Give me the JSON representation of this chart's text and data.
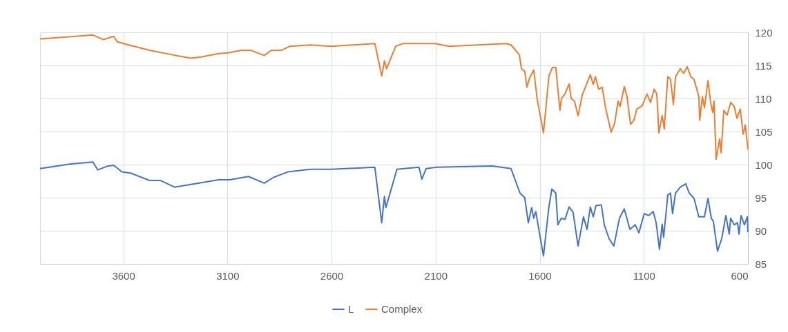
{
  "chart_data": {
    "type": "line",
    "xlim": [
      4000,
      600
    ],
    "xticks": [
      3600,
      3100,
      2600,
      2100,
      1600,
      1100,
      600
    ],
    "ylim": [
      85,
      120
    ],
    "yticks": [
      85,
      90,
      95,
      100,
      105,
      110,
      115,
      120
    ],
    "grid": true,
    "legend": "bottom",
    "series": [
      {
        "name": "L",
        "color": "#4472c4",
        "x": [
          4000,
          3852,
          3746,
          3723,
          3673,
          3646,
          3607,
          3563,
          3474,
          3421,
          3354,
          3255,
          3142,
          3089,
          2999,
          2923,
          2877,
          2810,
          2701,
          2601,
          2392,
          2359,
          2346,
          2339,
          2286,
          2180,
          2166,
          2146,
          2093,
          1828,
          1738,
          1695,
          1672,
          1655,
          1639,
          1629,
          1619,
          1606,
          1582,
          1556,
          1542,
          1523,
          1513,
          1496,
          1479,
          1459,
          1440,
          1416,
          1390,
          1373,
          1357,
          1343,
          1330,
          1304,
          1290,
          1267,
          1244,
          1217,
          1194,
          1167,
          1141,
          1124,
          1098,
          1078,
          1055,
          1041,
          1025,
          1012,
          1005,
          985,
          972,
          962,
          948,
          925,
          899,
          882,
          859,
          836,
          809,
          792,
          776,
          766,
          746,
          726,
          706,
          690,
          683,
          666,
          650,
          643,
          633,
          617,
          603,
          600
        ],
        "values": [
          99.4,
          100.1,
          100.4,
          99.2,
          99.8,
          99.9,
          98.9,
          98.7,
          97.6,
          97.6,
          96.6,
          97.1,
          97.7,
          97.7,
          98.2,
          97.2,
          98.1,
          98.9,
          99.3,
          99.3,
          99.6,
          91.2,
          95.2,
          93.5,
          99.3,
          99.6,
          97.8,
          99.4,
          99.6,
          99.8,
          99.4,
          95.7,
          95.0,
          91.2,
          93.5,
          91.9,
          92.9,
          90.5,
          86.2,
          93.6,
          96.3,
          95.7,
          90.9,
          91.9,
          91.7,
          93.6,
          92.8,
          87.7,
          92.1,
          90.2,
          93.6,
          92.1,
          93.8,
          93.9,
          90.9,
          88.8,
          87.7,
          91.9,
          93.3,
          90.2,
          90.9,
          89.7,
          92.6,
          92.3,
          92.9,
          91.2,
          87.2,
          91.0,
          89.0,
          95.4,
          95.7,
          92.6,
          95.7,
          96.6,
          97.1,
          95.7,
          94.9,
          92.1,
          92.1,
          94.9,
          91.9,
          91.4,
          86.9,
          88.8,
          92.3,
          89.5,
          91.9,
          90.9,
          91.2,
          89.5,
          92.3,
          90.9,
          92.1,
          89.8
        ]
      },
      {
        "name": "Complex",
        "color": "#ed7d31",
        "x": [
          4000,
          3829,
          3746,
          3696,
          3646,
          3630,
          3587,
          3474,
          3364,
          3275,
          3222,
          3142,
          3099,
          3033,
          2989,
          2923,
          2890,
          2840,
          2800,
          2701,
          2601,
          2392,
          2359,
          2346,
          2336,
          2292,
          2259,
          2103,
          2037,
          1761,
          1738,
          1698,
          1688,
          1672,
          1662,
          1649,
          1629,
          1612,
          1582,
          1556,
          1539,
          1523,
          1513,
          1503,
          1496,
          1479,
          1459,
          1449,
          1433,
          1416,
          1396,
          1357,
          1343,
          1333,
          1317,
          1300,
          1284,
          1257,
          1240,
          1224,
          1214,
          1194,
          1181,
          1164,
          1148,
          1134,
          1108,
          1085,
          1068,
          1051,
          1038,
          1028,
          1012,
          1002,
          985,
          972,
          958,
          948,
          925,
          909,
          892,
          875,
          859,
          836,
          832,
          819,
          809,
          792,
          779,
          769,
          763,
          753,
          736,
          729,
          716,
          700,
          683,
          666,
          653,
          637,
          623,
          613,
          600
        ],
        "values": [
          119.0,
          119.4,
          119.6,
          118.9,
          119.4,
          118.6,
          118.2,
          117.3,
          116.6,
          116.1,
          116.3,
          116.8,
          116.9,
          117.3,
          117.3,
          116.5,
          117.3,
          117.3,
          117.9,
          118.1,
          117.9,
          118.3,
          113.4,
          115.7,
          114.5,
          117.9,
          118.3,
          118.3,
          117.9,
          118.3,
          118.1,
          116.6,
          114.5,
          114.1,
          111.7,
          113.1,
          114.3,
          109.8,
          104.8,
          113.4,
          114.7,
          114.7,
          111.4,
          108.2,
          110.0,
          110.7,
          112.2,
          110.0,
          109.6,
          107.4,
          110.5,
          113.6,
          112.1,
          113.3,
          111.4,
          111.7,
          108.6,
          104.9,
          106.3,
          109.6,
          108.8,
          111.8,
          110.3,
          106.1,
          106.7,
          108.4,
          108.9,
          110.7,
          109.4,
          111.4,
          110.7,
          104.8,
          107.4,
          105.4,
          113.3,
          112.9,
          109.1,
          113.3,
          114.5,
          113.8,
          114.8,
          113.3,
          112.9,
          110.3,
          106.7,
          110.3,
          108.6,
          112.7,
          109.3,
          107.9,
          109.6,
          100.8,
          103.9,
          101.8,
          108.2,
          107.5,
          109.4,
          108.8,
          107.0,
          108.4,
          104.6,
          106.0,
          102.3
        ]
      }
    ]
  }
}
